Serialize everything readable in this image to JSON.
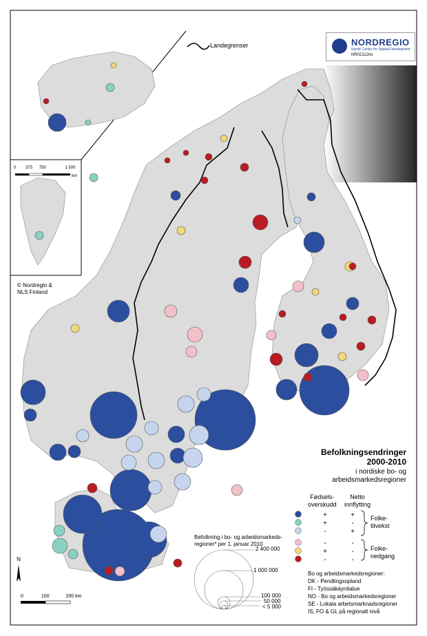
{
  "logo": {
    "name": "NORDREGIO",
    "subtitle": "Nordic Centre for Spatial Development",
    "code": "NR02112no"
  },
  "border_legend": {
    "label": "Landegrenser"
  },
  "title": {
    "main": "Befolkningsendringer",
    "years": "2000-2010",
    "sub1": "i nordiske bo- og",
    "sub2": "arbeidsmarkedsregioner"
  },
  "legend": {
    "col_births": [
      "Fødsels-",
      "overskudd"
    ],
    "col_migration": [
      "Netto",
      "innflytting"
    ],
    "rows": [
      {
        "color": "#2b4e9e",
        "births": "+",
        "migration": "+"
      },
      {
        "color": "#8ad0c0",
        "births": "+",
        "migration": "-"
      },
      {
        "color": "#c5d5ee",
        "births": "-",
        "migration": "+"
      },
      {
        "color": "#f2c0c8",
        "births": "-",
        "migration": "-"
      },
      {
        "color": "#f3d878",
        "births": "+",
        "migration": "-"
      },
      {
        "color": "#b81c22",
        "births": "-",
        "migration": "-"
      }
    ],
    "group_growth": [
      "Folke-",
      "tilvekst"
    ],
    "group_decline": [
      "Folke-",
      "nedgang"
    ]
  },
  "size_legend": {
    "title": [
      "Befolkning i bo- og arbeidsmarkeds-",
      "regioner* per 1. januar 2010"
    ],
    "values": [
      "2 400 000",
      "1 000 000",
      "100 000",
      "50 000",
      "< 5 000"
    ]
  },
  "notes": [
    "Bo og arbeidsmarkedsregioner:",
    "DK - Pendlingsopland",
    "FI - Työssäkäyntialue",
    "NO - Bo og arbeidsmarkedsregioner",
    "SE - Lokala arbetsmarknadsregioner",
    "IS, FO & GL på regionalt nivå"
  ],
  "credit": [
    "© Nordregio &",
    "NLS Finland"
  ],
  "inset_scale": {
    "ticks": [
      "0",
      "375",
      "750",
      "1 500"
    ],
    "unit": "km"
  },
  "main_scale": {
    "ticks": [
      "0",
      "100",
      "200 km"
    ]
  },
  "north_arrow": "N",
  "colors": {
    "sea": "#ffffff",
    "land": "#dcdcdc",
    "border": "#000000"
  }
}
